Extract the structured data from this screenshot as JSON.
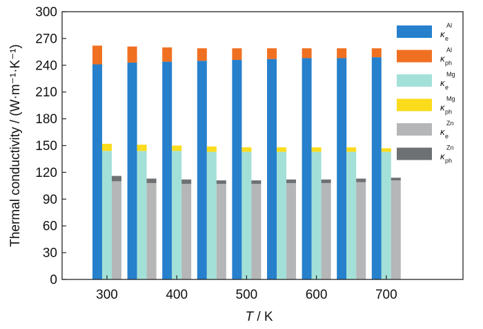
{
  "chart_data": {
    "type": "bar",
    "stacked_groups": true,
    "x": [
      300,
      350,
      400,
      450,
      500,
      550,
      600,
      650,
      700
    ],
    "x_tick_labels": [
      "300",
      "400",
      "500",
      "600",
      "700"
    ],
    "xlabel_italic": "T",
    "xlabel_rest": " / K",
    "ylabel": "Thermal conductivity / (W·m⁻¹·K⁻¹)",
    "ylim": [
      0,
      300
    ],
    "yticks": [
      0,
      30,
      60,
      90,
      120,
      150,
      180,
      210,
      240,
      270,
      300
    ],
    "grid": false,
    "legend_position": "top-right",
    "groups": [
      {
        "metal": "Al",
        "series": [
          {
            "name": "κeAl",
            "symbol": "κ",
            "sub": "e",
            "sup": "Al",
            "color": "#2680cc",
            "values": [
              241,
              243,
              244,
              245,
              246,
              247,
              248,
              248,
              249
            ]
          },
          {
            "name": "κphAl",
            "symbol": "κ",
            "sub": "ph",
            "sup": "Al",
            "color": "#f07022",
            "values": [
              21,
              18,
              16,
              14,
              13,
              12,
              11,
              11,
              10
            ]
          }
        ]
      },
      {
        "metal": "Mg",
        "series": [
          {
            "name": "κeMg",
            "symbol": "κ",
            "sub": "e",
            "sup": "Mg",
            "color": "#a3e0d8",
            "values": [
              144,
              144,
              144,
              143,
              143,
              143,
              143,
              143,
              143
            ]
          },
          {
            "name": "κphMg",
            "symbol": "κ",
            "sub": "ph",
            "sup": "Mg",
            "color": "#fbdc1d",
            "values": [
              8,
              7,
              6,
              6,
              5,
              5,
              5,
              5,
              4
            ]
          }
        ]
      },
      {
        "metal": "Zn",
        "series": [
          {
            "name": "κeZn",
            "symbol": "κ",
            "sub": "e",
            "sup": "Zn",
            "color": "#b4b6b8",
            "values": [
              110,
              108,
              107,
              107,
              107,
              108,
              108,
              109,
              111
            ]
          },
          {
            "name": "κphZn",
            "symbol": "κ",
            "sub": "ph",
            "sup": "Zn",
            "color": "#6e7174",
            "values": [
              6,
              5,
              5,
              4,
              4,
              4,
              4,
              4,
              3
            ]
          }
        ]
      }
    ]
  }
}
